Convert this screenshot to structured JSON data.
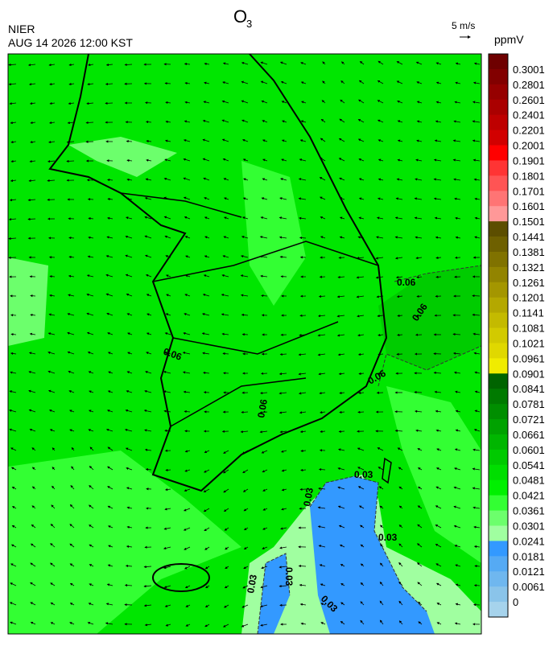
{
  "header": {
    "title": "O",
    "title_subscript": "3",
    "agency": "NIER",
    "datetime": "AUG 14 2026 12:00 KST",
    "wind_scale": "5 m/s",
    "unit": "ppmV"
  },
  "colorbar": {
    "labels": [
      0.3001,
      0.2801,
      0.2601,
      0.2401,
      0.2201,
      0.2001,
      0.1901,
      0.1801,
      0.1701,
      0.1601,
      0.1501,
      0.1441,
      0.1381,
      0.1321,
      0.1261,
      0.1201,
      0.1141,
      0.1081,
      0.1021,
      0.0961,
      0.0901,
      0.0841,
      0.0781,
      0.0721,
      0.0661,
      0.0601,
      0.0541,
      0.0481,
      0.0421,
      0.0361,
      0.0301,
      0.0241,
      0.0181,
      0.0121,
      0.0061,
      0
    ],
    "colors": [
      "#6e0000",
      "#820000",
      "#960000",
      "#aa0000",
      "#be0000",
      "#d20000",
      "#ff0000",
      "#ff3434",
      "#ff5454",
      "#ff7474",
      "#ff9898",
      "#5c4e00",
      "#6e6000",
      "#807200",
      "#928400",
      "#a49600",
      "#b4a800",
      "#c4ba00",
      "#d2ca00",
      "#e0d800",
      "#f0ec00",
      "#006400",
      "#007a00",
      "#008e00",
      "#00a200",
      "#00b600",
      "#00ca00",
      "#00de00",
      "#00f000",
      "#33ff33",
      "#6cff6c",
      "#a0ffa0",
      "#3399ff",
      "#55aaf4",
      "#6fb7ef",
      "#8ac4ea",
      "#a6d3ec"
    ]
  },
  "map": {
    "contour_labels": [
      "0.06",
      "0.06",
      "0.06",
      "0.06",
      "0.06",
      "0.03",
      "0.03",
      "0.03",
      "0.03",
      "0.03",
      "0.03"
    ]
  }
}
